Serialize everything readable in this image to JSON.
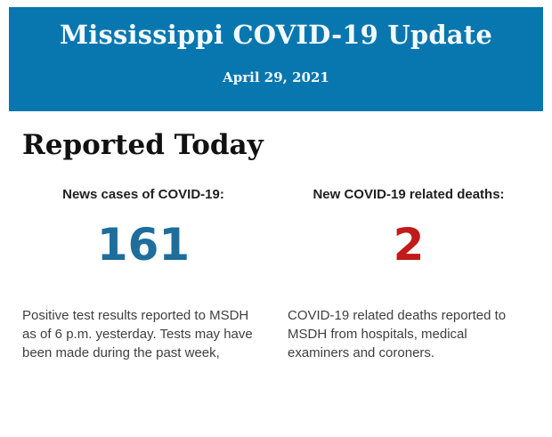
{
  "banner": {
    "title": "Mississippi COVID-19 Update",
    "date": "April 29, 2021",
    "background_color": "#0877b0",
    "text_color": "#f4f9fc"
  },
  "main": {
    "heading": "Reported Today",
    "stats": [
      {
        "label": "News cases of COVID-19:",
        "value": "161",
        "value_color": "#1e6e9c",
        "description": "Positive test results reported to MSDH as of 6 p.m. yesterday. Tests may have been made during the past week,"
      },
      {
        "label": "New COVID-19 related deaths:",
        "value": "2",
        "value_color": "#c01a1a",
        "description": "COVID-19 related deaths reported to MSDH from hospitals, medical examiners and coroners."
      }
    ]
  }
}
